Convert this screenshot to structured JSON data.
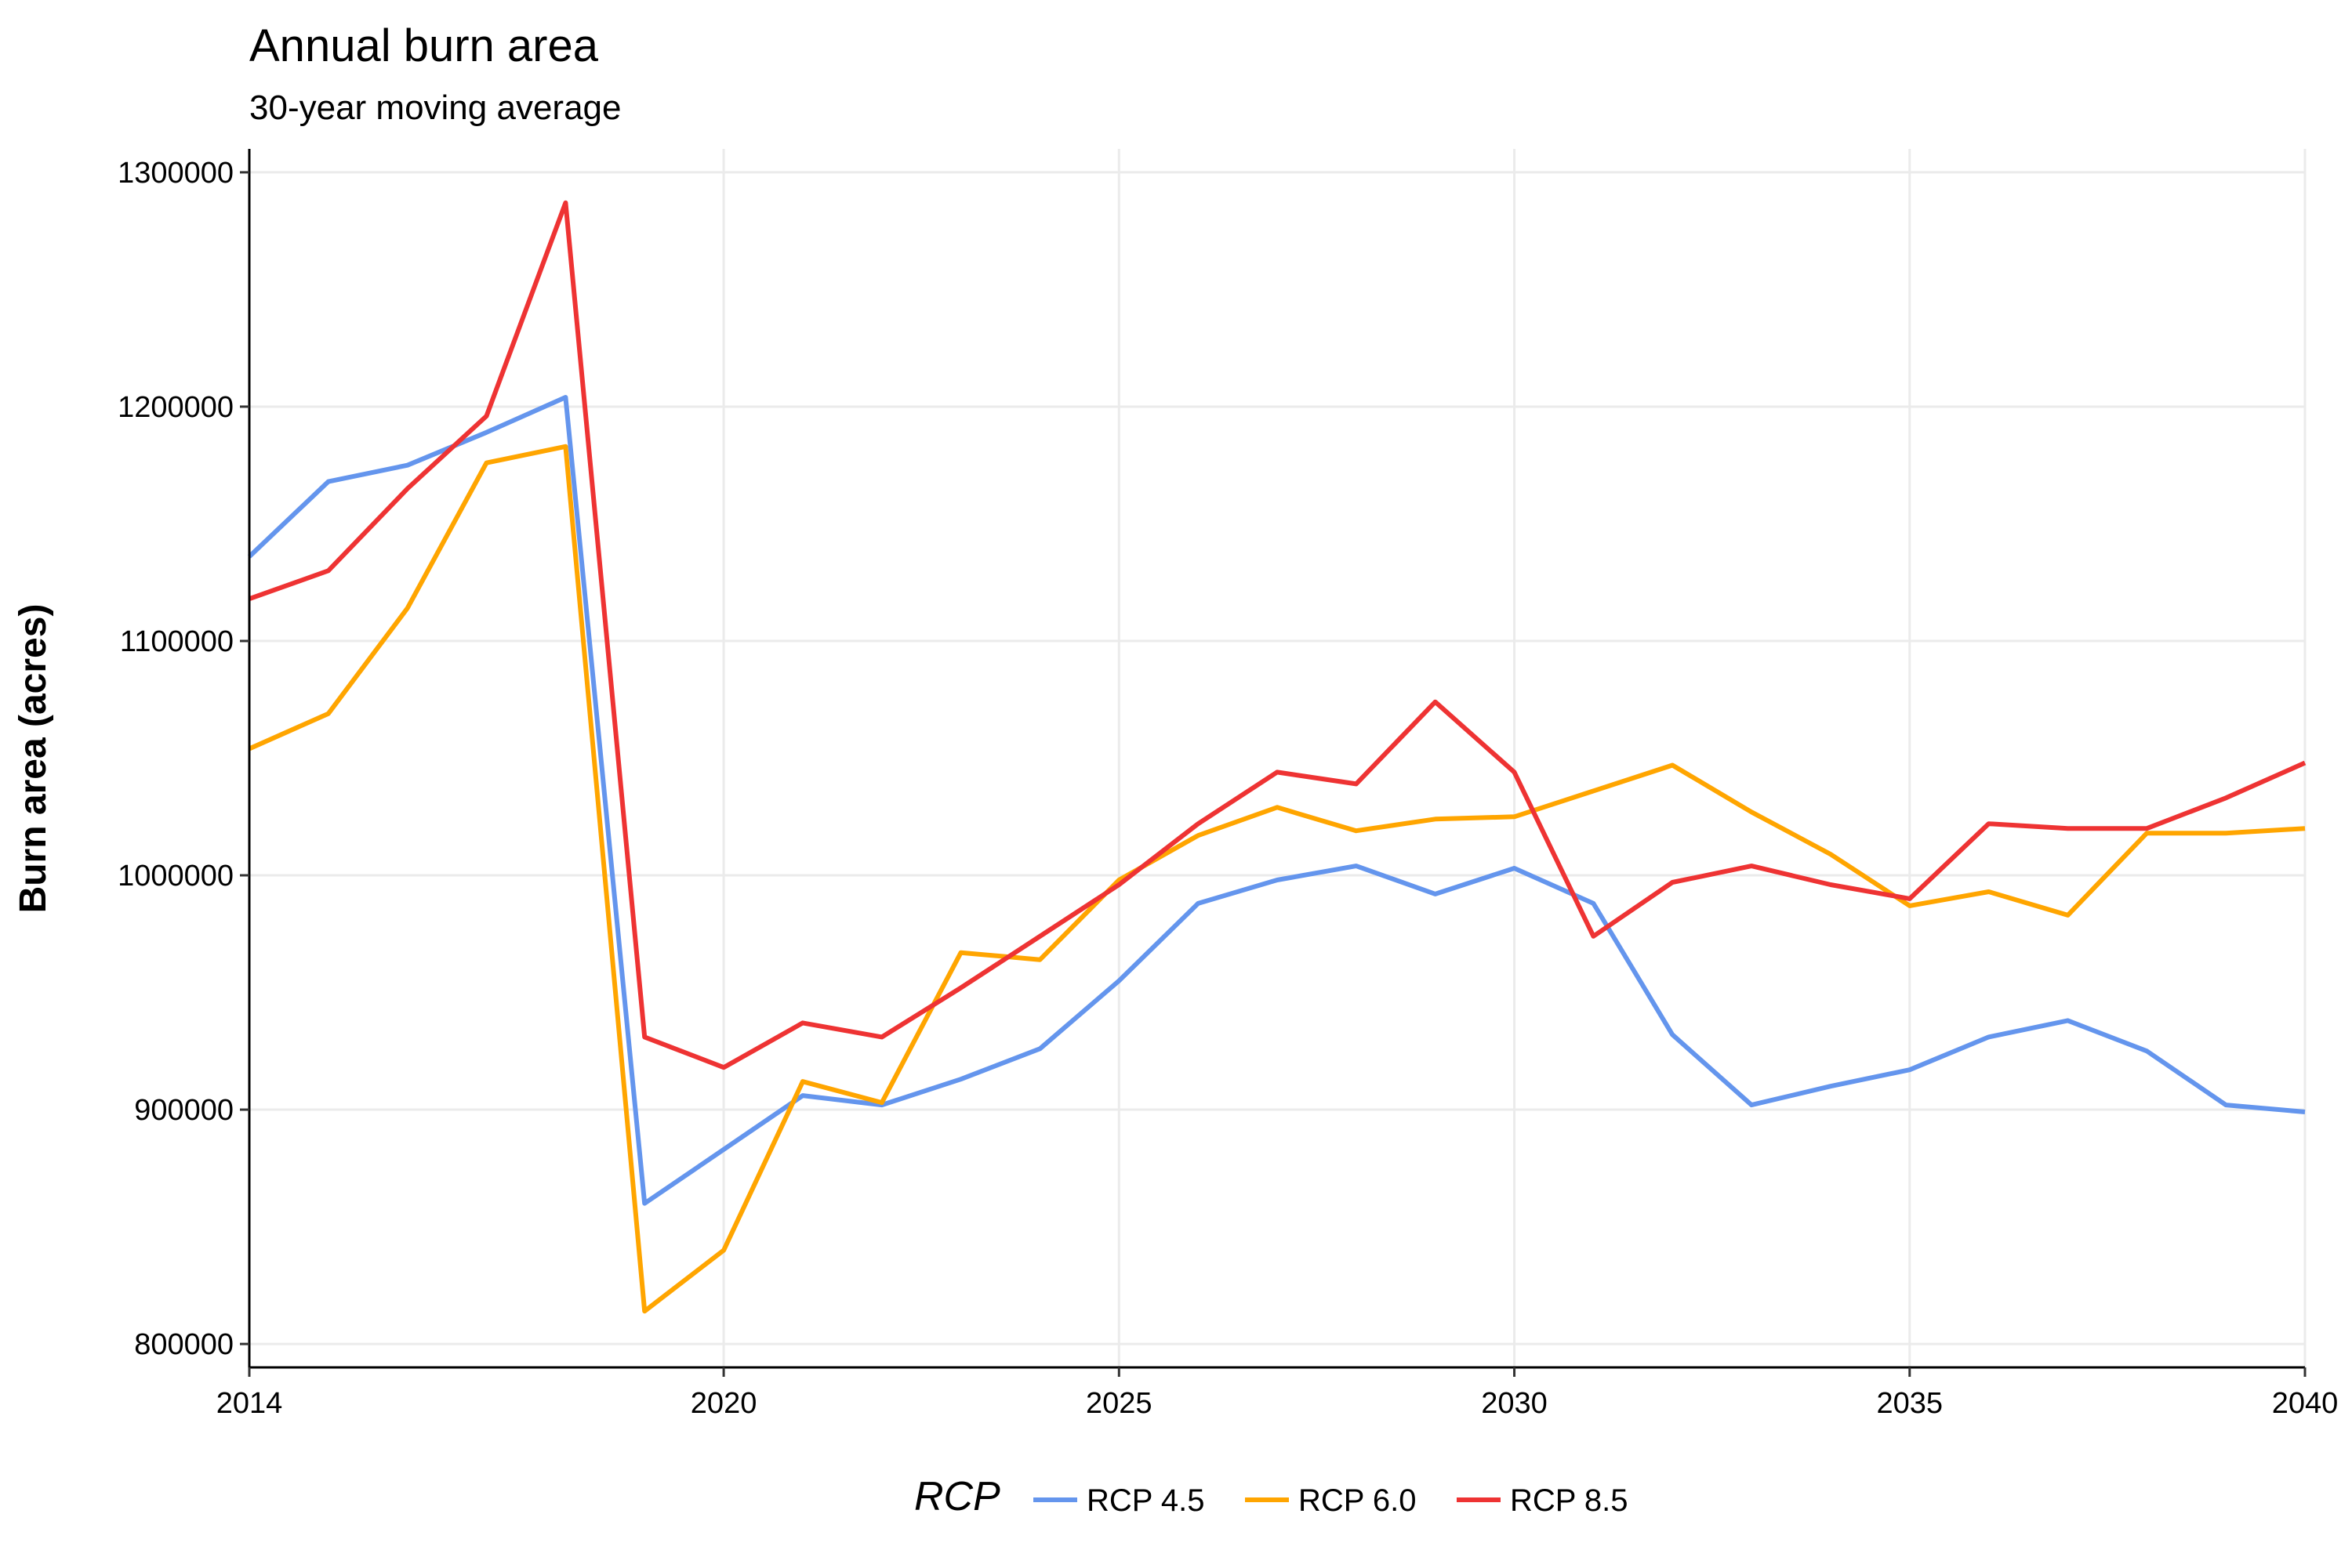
{
  "chart_data": {
    "type": "line",
    "title": "Annual burn area",
    "subtitle": "30-year moving average",
    "xlabel": "",
    "ylabel": "Burn area (acres)",
    "xlim": [
      2014,
      2040
    ],
    "ylim": [
      790000,
      1310000
    ],
    "x_ticks": [
      2014,
      2020,
      2025,
      2030,
      2035,
      2040
    ],
    "y_ticks": [
      800000,
      900000,
      1000000,
      1100000,
      1200000,
      1300000
    ],
    "x_tick_labels": [
      "2014",
      "2020",
      "2025",
      "2030",
      "2035",
      "2040"
    ],
    "y_tick_labels": [
      "800000",
      "900000",
      "1000000",
      "1100000",
      "1200000",
      "1300000"
    ],
    "grid": true,
    "legend": {
      "title": "RCP",
      "position": "bottom"
    },
    "x": [
      2014,
      2015,
      2016,
      2017,
      2018,
      2019,
      2020,
      2021,
      2022,
      2023,
      2024,
      2025,
      2026,
      2027,
      2028,
      2029,
      2030,
      2031,
      2032,
      2033,
      2034,
      2035,
      2036,
      2037,
      2038,
      2039,
      2040
    ],
    "series": [
      {
        "name": "RCP 4.5",
        "color": "#6495ED",
        "values": [
          1136000,
          1168000,
          1175000,
          1189000,
          1204000,
          860000,
          883000,
          906000,
          902000,
          913000,
          926000,
          955000,
          988000,
          998000,
          1004000,
          992000,
          1003000,
          988000,
          932000,
          902000,
          910000,
          917000,
          931000,
          938000,
          925000,
          902000,
          899000
        ]
      },
      {
        "name": "RCP 6.0",
        "color": "#FFA500",
        "values": [
          1054000,
          1069000,
          1114000,
          1176000,
          1183000,
          814000,
          840000,
          912000,
          903000,
          967000,
          964000,
          998000,
          1017000,
          1029000,
          1019000,
          1024000,
          1025000,
          1036000,
          1047000,
          1027000,
          1009000,
          987000,
          993000,
          983000,
          1018000,
          1018000,
          1020000
        ]
      },
      {
        "name": "RCP 8.5",
        "color": "#EE3333",
        "values": [
          1118000,
          1130000,
          1165000,
          1196000,
          1287000,
          931000,
          918000,
          937000,
          931000,
          952000,
          974000,
          996000,
          1022000,
          1044000,
          1039000,
          1074000,
          1044000,
          974000,
          997000,
          1004000,
          996000,
          990000,
          1022000,
          1020000,
          1020000,
          1033000,
          1048000
        ]
      }
    ]
  }
}
